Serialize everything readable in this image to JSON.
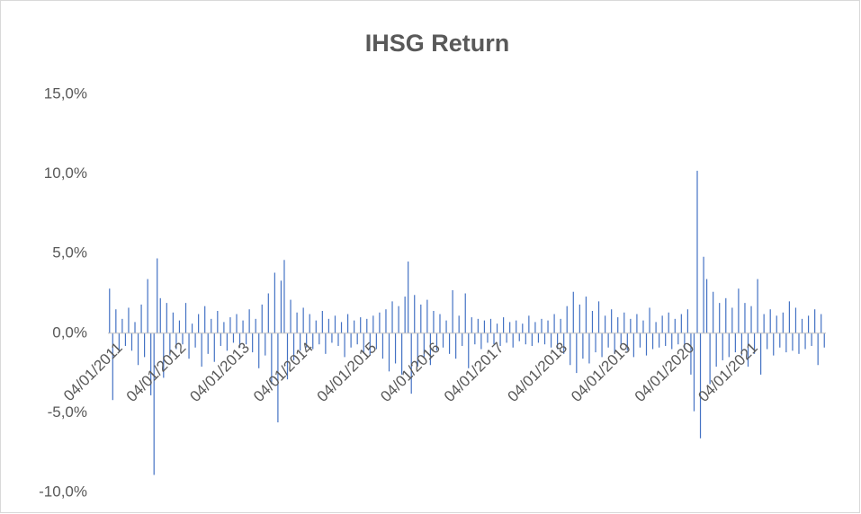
{
  "chart_data": {
    "type": "bar",
    "title": "IHSG Return",
    "categories": [
      "04/01/2011",
      null,
      null,
      null,
      null,
      null,
      null,
      null,
      null,
      null,
      null,
      null,
      null,
      null,
      null,
      null,
      null,
      null,
      null,
      null,
      "04/01/2012",
      null,
      null,
      null,
      null,
      null,
      null,
      null,
      null,
      null,
      null,
      null,
      null,
      null,
      null,
      null,
      null,
      null,
      null,
      null,
      "04/01/2013",
      null,
      null,
      null,
      null,
      null,
      null,
      null,
      null,
      null,
      null,
      null,
      null,
      null,
      null,
      null,
      null,
      null,
      null,
      null,
      "04/01/2014",
      null,
      null,
      null,
      null,
      null,
      null,
      null,
      null,
      null,
      null,
      null,
      null,
      null,
      null,
      null,
      null,
      null,
      null,
      null,
      "04/01/2015",
      null,
      null,
      null,
      null,
      null,
      null,
      null,
      null,
      null,
      null,
      null,
      null,
      null,
      null,
      null,
      null,
      null,
      null,
      null,
      "04/01/2016",
      null,
      null,
      null,
      null,
      null,
      null,
      null,
      null,
      null,
      null,
      null,
      null,
      null,
      null,
      null,
      null,
      null,
      null,
      null,
      "04/01/2017",
      null,
      null,
      null,
      null,
      null,
      null,
      null,
      null,
      null,
      null,
      null,
      null,
      null,
      null,
      null,
      null,
      null,
      null,
      null,
      "04/01/2018",
      null,
      null,
      null,
      null,
      null,
      null,
      null,
      null,
      null,
      null,
      null,
      null,
      null,
      null,
      null,
      null,
      null,
      null,
      null,
      "04/01/2019",
      null,
      null,
      null,
      null,
      null,
      null,
      null,
      null,
      null,
      null,
      null,
      null,
      null,
      null,
      null,
      null,
      null,
      null,
      null,
      "04/01/2020",
      null,
      null,
      null,
      null,
      null,
      null,
      null,
      null,
      null,
      null,
      null,
      null,
      null,
      null,
      null,
      null,
      null,
      null,
      null,
      "04/01/2021",
      null,
      null,
      null,
      null,
      null,
      null,
      null,
      null,
      null,
      null,
      null,
      null,
      null,
      null,
      null,
      null,
      null,
      null,
      null,
      null,
      null,
      null,
      null,
      null,
      null
    ],
    "values": [
      2.8,
      -4.2,
      1.5,
      -1.2,
      0.9,
      -0.8,
      1.6,
      -1.1,
      0.7,
      -2.0,
      1.8,
      -1.5,
      3.4,
      -3.9,
      -8.9,
      4.7,
      2.2,
      -2.8,
      1.9,
      -1.4,
      1.3,
      -1.0,
      0.8,
      -0.7,
      1.9,
      -1.6,
      0.6,
      -0.9,
      1.2,
      -2.1,
      1.7,
      -1.3,
      0.9,
      -1.8,
      1.4,
      -0.8,
      0.7,
      -1.1,
      1.0,
      -0.6,
      1.2,
      -0.9,
      0.8,
      -0.7,
      1.5,
      -1.2,
      0.9,
      -2.2,
      1.8,
      -1.4,
      2.5,
      -3.2,
      3.8,
      -5.6,
      3.3,
      4.6,
      -2.9,
      2.1,
      -1.7,
      1.3,
      -1.1,
      1.6,
      -0.9,
      1.2,
      -1.0,
      0.8,
      -0.7,
      1.4,
      -1.3,
      0.9,
      -0.6,
      1.1,
      -0.8,
      0.7,
      -1.5,
      1.2,
      -0.9,
      0.8,
      -0.7,
      1.0,
      -1.2,
      0.9,
      -1.4,
      1.1,
      -1.0,
      1.3,
      -1.6,
      1.5,
      -2.4,
      2.0,
      -1.9,
      1.7,
      -2.6,
      2.3,
      4.5,
      -3.8,
      2.4,
      -2.1,
      1.8,
      -1.5,
      2.1,
      -2.0,
      1.4,
      -1.1,
      1.2,
      -0.9,
      0.8,
      -1.3,
      2.7,
      -1.6,
      1.1,
      -0.8,
      2.5,
      -2.2,
      1.0,
      -0.7,
      0.9,
      -1.0,
      0.8,
      -0.6,
      0.9,
      -0.7,
      0.6,
      -0.8,
      1.0,
      -0.6,
      0.7,
      -0.9,
      0.8,
      -0.5,
      0.6,
      -0.7,
      1.1,
      -0.8,
      0.7,
      -0.6,
      0.9,
      -0.7,
      0.8,
      -0.9,
      1.2,
      -1.0,
      0.9,
      -1.3,
      1.7,
      -2.0,
      2.6,
      -2.5,
      1.8,
      -1.6,
      2.3,
      -1.9,
      1.4,
      -1.2,
      2.0,
      -1.5,
      1.1,
      -0.9,
      1.5,
      -1.3,
      1.0,
      -0.8,
      1.3,
      -1.1,
      0.9,
      -1.5,
      1.2,
      -0.9,
      0.8,
      -1.4,
      1.6,
      -1.0,
      0.7,
      -0.9,
      1.1,
      -0.8,
      1.3,
      -1.0,
      0.9,
      -0.7,
      1.2,
      -1.0,
      1.5,
      -2.6,
      -4.9,
      10.2,
      -6.6,
      4.8,
      3.4,
      -3.2,
      2.6,
      -2.1,
      1.9,
      -1.7,
      2.2,
      -1.5,
      1.6,
      -1.2,
      2.8,
      -1.4,
      1.9,
      -2.1,
      1.7,
      -1.3,
      3.4,
      -2.6,
      1.2,
      -1.0,
      1.5,
      -1.4,
      1.1,
      -0.9,
      1.3,
      -1.2,
      2.0,
      -1.1,
      1.6,
      -1.3,
      0.9,
      -1.0,
      1.1,
      -0.8,
      1.5,
      -2.0,
      1.2,
      -0.9
    ],
    "color": "#4472c4",
    "ylim": [
      -10,
      15
    ],
    "yticks": [
      {
        "value": -10,
        "label": "-10,0%"
      },
      {
        "value": -5,
        "label": "-5,0%"
      },
      {
        "value": 0,
        "label": "0,0%"
      },
      {
        "value": 5,
        "label": "5,0%"
      },
      {
        "value": 10,
        "label": "10,0%"
      },
      {
        "value": 15,
        "label": "15,0%"
      }
    ],
    "grid": false
  }
}
